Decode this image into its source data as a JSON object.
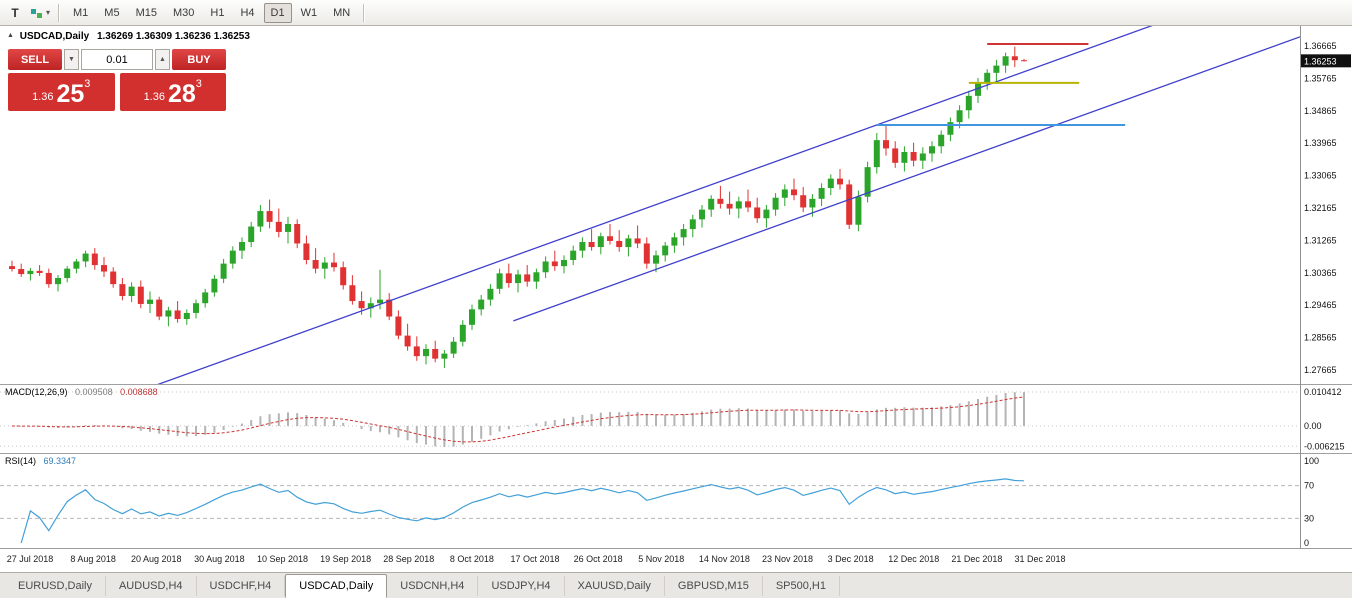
{
  "toolbar": {
    "text_tool": "T",
    "objects_dropdown_caret": "▾",
    "timeframes": [
      "M1",
      "M5",
      "M15",
      "M30",
      "H1",
      "H4",
      "D1",
      "W1",
      "MN"
    ],
    "active_timeframe": "D1"
  },
  "chart_header": {
    "marker": "▲",
    "symbol_period": "USDCAD,Daily",
    "ohlc": "1.36269 1.36309 1.36236 1.36253"
  },
  "trade_panel": {
    "sell_label": "SELL",
    "buy_label": "BUY",
    "volume": "0.01",
    "volume_down_glyph": "▼",
    "volume_up_glyph": "▲",
    "bid": {
      "big_figure": "1.36",
      "pips": "25",
      "pipette": "3"
    },
    "ask": {
      "big_figure": "1.36",
      "pips": "28",
      "pipette": "3"
    }
  },
  "price_scale": {
    "labels": [
      "1.36665",
      "1.35765",
      "1.34865",
      "1.33965",
      "1.33065",
      "1.32165",
      "1.31265",
      "1.30365",
      "1.29465",
      "1.28565",
      "1.27665"
    ],
    "current_price": "1.36253"
  },
  "macd_panel": {
    "name": "MACD(12,26,9)",
    "value_main": "0.009508",
    "value_signal": "0.008688",
    "scale": [
      "0.010412",
      "0.00",
      "-0.006215"
    ]
  },
  "rsi_panel": {
    "name": "RSI(14)",
    "value": "69.3347",
    "scale": [
      "100",
      "70",
      "30",
      "0"
    ]
  },
  "time_axis": [
    "27 Jul 2018",
    "8 Aug 2018",
    "20 Aug 2018",
    "30 Aug 2018",
    "10 Sep 2018",
    "19 Sep 2018",
    "28 Sep 2018",
    "8 Oct 2018",
    "17 Oct 2018",
    "26 Oct 2018",
    "5 Nov 2018",
    "14 Nov 2018",
    "23 Nov 2018",
    "3 Dec 2018",
    "12 Dec 2018",
    "21 Dec 2018",
    "31 Dec 2018"
  ],
  "tabs": {
    "items": [
      {
        "label": "EURUSD,Daily",
        "active": false
      },
      {
        "label": "AUDUSD,H4",
        "active": false
      },
      {
        "label": "USDCHF,H4",
        "active": false
      },
      {
        "label": "USDCAD,Daily",
        "active": true
      },
      {
        "label": "USDCNH,H4",
        "active": false
      },
      {
        "label": "USDJPY,H4",
        "active": false
      },
      {
        "label": "XAUUSD,Daily",
        "active": false
      },
      {
        "label": "GBPUSD,M15",
        "active": false
      },
      {
        "label": "SP500,H1",
        "active": false
      }
    ]
  },
  "colors": {
    "bull": "#2aa52a",
    "bear": "#e03232",
    "trendline": "#4040cc",
    "hline_red": "#d03333",
    "hline_yellow": "#b5b500",
    "hline_blue": "#4196e0",
    "macd_histogram": "#b4b4b4",
    "macd_signal": "#d03333",
    "rsi_line": "#42a0d8",
    "level_line": "#b8b8b8",
    "price_tag_bg": "#101010",
    "trade_red": "#d22f2f"
  },
  "chart_data": {
    "type": "candlestick",
    "symbol": "USDCAD",
    "period": "Daily",
    "visible_range": {
      "start": "27 Jul 2018",
      "end": "31 Dec 2018"
    },
    "y_axis": {
      "max": 1.36665,
      "min": 1.27665,
      "step": 0.009
    },
    "candles": [
      [
        1.3055,
        1.307,
        1.304,
        1.3047
      ],
      [
        1.3047,
        1.3062,
        1.3025,
        1.3033
      ],
      [
        1.3033,
        1.305,
        1.3015,
        1.3042
      ],
      [
        1.3042,
        1.3058,
        1.3028,
        1.3036
      ],
      [
        1.3036,
        1.3048,
        1.2995,
        1.3005
      ],
      [
        1.3005,
        1.303,
        1.2985,
        1.3022
      ],
      [
        1.3022,
        1.3055,
        1.301,
        1.3048
      ],
      [
        1.3048,
        1.3075,
        1.3035,
        1.3068
      ],
      [
        1.3068,
        1.3098,
        1.3052,
        1.309
      ],
      [
        1.309,
        1.3105,
        1.3045,
        1.3058
      ],
      [
        1.3058,
        1.308,
        1.3025,
        1.304
      ],
      [
        1.304,
        1.3052,
        1.2995,
        1.3005
      ],
      [
        1.3005,
        1.3022,
        1.296,
        1.2972
      ],
      [
        1.2972,
        1.301,
        1.2955,
        1.2998
      ],
      [
        1.2998,
        1.3015,
        1.2938,
        1.295
      ],
      [
        1.295,
        1.2985,
        1.2925,
        1.2962
      ],
      [
        1.2962,
        1.297,
        1.2905,
        1.2915
      ],
      [
        1.2915,
        1.2942,
        1.2888,
        1.2932
      ],
      [
        1.2932,
        1.2958,
        1.2898,
        1.2908
      ],
      [
        1.2908,
        1.2935,
        1.2892,
        1.2925
      ],
      [
        1.2925,
        1.2962,
        1.291,
        1.2952
      ],
      [
        1.2952,
        1.2992,
        1.294,
        1.2982
      ],
      [
        1.2982,
        1.303,
        1.297,
        1.302
      ],
      [
        1.302,
        1.3075,
        1.3008,
        1.3062
      ],
      [
        1.3062,
        1.311,
        1.3048,
        1.3098
      ],
      [
        1.3098,
        1.3135,
        1.3075,
        1.3122
      ],
      [
        1.3122,
        1.3178,
        1.3108,
        1.3165
      ],
      [
        1.3165,
        1.3225,
        1.315,
        1.3208
      ],
      [
        1.3208,
        1.324,
        1.316,
        1.3178
      ],
      [
        1.3178,
        1.3215,
        1.3135,
        1.315
      ],
      [
        1.315,
        1.3192,
        1.3118,
        1.3172
      ],
      [
        1.3172,
        1.3185,
        1.3105,
        1.3118
      ],
      [
        1.3118,
        1.314,
        1.306,
        1.3072
      ],
      [
        1.3072,
        1.3105,
        1.3035,
        1.3048
      ],
      [
        1.3048,
        1.308,
        1.302,
        1.3065
      ],
      [
        1.3065,
        1.3092,
        1.304,
        1.3052
      ],
      [
        1.3052,
        1.3068,
        1.299,
        1.3002
      ],
      [
        1.3002,
        1.303,
        1.2948,
        1.2958
      ],
      [
        1.2958,
        1.2985,
        1.292,
        1.2938
      ],
      [
        1.2938,
        1.2968,
        1.2912,
        1.2952
      ],
      [
        1.2952,
        1.3045,
        1.2935,
        1.2962
      ],
      [
        1.2962,
        1.298,
        1.2905,
        1.2915
      ],
      [
        1.2915,
        1.2932,
        1.2852,
        1.2862
      ],
      [
        1.2862,
        1.2895,
        1.282,
        1.2832
      ],
      [
        1.2832,
        1.286,
        1.2792,
        1.2805
      ],
      [
        1.2805,
        1.2838,
        1.2782,
        1.2825
      ],
      [
        1.2825,
        1.2848,
        1.2788,
        1.2798
      ],
      [
        1.2798,
        1.2822,
        1.2772,
        1.2812
      ],
      [
        1.2812,
        1.2858,
        1.28,
        1.2845
      ],
      [
        1.2845,
        1.2905,
        1.2832,
        1.2892
      ],
      [
        1.2892,
        1.2948,
        1.2878,
        1.2935
      ],
      [
        1.2935,
        1.2975,
        1.2918,
        1.2962
      ],
      [
        1.2962,
        1.3005,
        1.2945,
        1.2992
      ],
      [
        1.2992,
        1.3048,
        1.2978,
        1.3035
      ],
      [
        1.3035,
        1.3062,
        1.2995,
        1.3008
      ],
      [
        1.3008,
        1.3045,
        1.2982,
        1.3032
      ],
      [
        1.3032,
        1.3058,
        1.2998,
        1.3012
      ],
      [
        1.3012,
        1.3048,
        1.2992,
        1.3038
      ],
      [
        1.3038,
        1.3082,
        1.3022,
        1.3068
      ],
      [
        1.3068,
        1.3098,
        1.3042,
        1.3055
      ],
      [
        1.3055,
        1.3085,
        1.3035,
        1.3072
      ],
      [
        1.3072,
        1.3112,
        1.3058,
        1.3098
      ],
      [
        1.3098,
        1.3135,
        1.3078,
        1.3122
      ],
      [
        1.3122,
        1.3158,
        1.3098,
        1.3108
      ],
      [
        1.3108,
        1.3148,
        1.3088,
        1.3138
      ],
      [
        1.3138,
        1.3172,
        1.3115,
        1.3125
      ],
      [
        1.3125,
        1.3155,
        1.3095,
        1.3108
      ],
      [
        1.3108,
        1.3142,
        1.3082,
        1.3132
      ],
      [
        1.3132,
        1.3168,
        1.3105,
        1.3118
      ],
      [
        1.3118,
        1.3135,
        1.3048,
        1.3062
      ],
      [
        1.3062,
        1.3098,
        1.3038,
        1.3085
      ],
      [
        1.3085,
        1.3122,
        1.3068,
        1.3112
      ],
      [
        1.3112,
        1.3148,
        1.3092,
        1.3135
      ],
      [
        1.3135,
        1.3172,
        1.3112,
        1.3158
      ],
      [
        1.3158,
        1.3198,
        1.3135,
        1.3185
      ],
      [
        1.3185,
        1.3225,
        1.3162,
        1.3212
      ],
      [
        1.3212,
        1.3252,
        1.3192,
        1.3242
      ],
      [
        1.3242,
        1.3278,
        1.3215,
        1.3228
      ],
      [
        1.3228,
        1.3262,
        1.3198,
        1.3215
      ],
      [
        1.3215,
        1.3248,
        1.3188,
        1.3235
      ],
      [
        1.3235,
        1.3268,
        1.3205,
        1.3218
      ],
      [
        1.3218,
        1.3245,
        1.3175,
        1.3188
      ],
      [
        1.3188,
        1.3225,
        1.3162,
        1.3212
      ],
      [
        1.3212,
        1.3258,
        1.3195,
        1.3245
      ],
      [
        1.3245,
        1.3282,
        1.3222,
        1.3268
      ],
      [
        1.3268,
        1.3298,
        1.3238,
        1.3252
      ],
      [
        1.3252,
        1.3275,
        1.3205,
        1.3218
      ],
      [
        1.3218,
        1.3255,
        1.3192,
        1.3242
      ],
      [
        1.3242,
        1.3285,
        1.3222,
        1.3272
      ],
      [
        1.3272,
        1.331,
        1.3252,
        1.3298
      ],
      [
        1.3298,
        1.3325,
        1.3268,
        1.3282
      ],
      [
        1.3282,
        1.3295,
        1.3158,
        1.317
      ],
      [
        1.317,
        1.3265,
        1.3152,
        1.3248
      ],
      [
        1.3248,
        1.3345,
        1.3232,
        1.333
      ],
      [
        1.333,
        1.3425,
        1.3312,
        1.3405
      ],
      [
        1.3405,
        1.3445,
        1.3362,
        1.3382
      ],
      [
        1.3382,
        1.3402,
        1.3328,
        1.3342
      ],
      [
        1.3342,
        1.3388,
        1.3318,
        1.3372
      ],
      [
        1.3372,
        1.3398,
        1.3332,
        1.3348
      ],
      [
        1.3348,
        1.3385,
        1.3325,
        1.3368
      ],
      [
        1.3368,
        1.3402,
        1.3345,
        1.3388
      ],
      [
        1.3388,
        1.3432,
        1.3368,
        1.342
      ],
      [
        1.342,
        1.3468,
        1.3402,
        1.3455
      ],
      [
        1.3455,
        1.3502,
        1.3438,
        1.3488
      ],
      [
        1.3488,
        1.3542,
        1.3465,
        1.3528
      ],
      [
        1.3528,
        1.3578,
        1.3508,
        1.3565
      ],
      [
        1.3565,
        1.3602,
        1.3545,
        1.3592
      ],
      [
        1.3592,
        1.3628,
        1.3568,
        1.3612
      ],
      [
        1.3612,
        1.3648,
        1.3592,
        1.3638
      ],
      [
        1.3638,
        1.3665,
        1.3608,
        1.3627
      ],
      [
        1.36269,
        1.36309,
        1.36236,
        1.36253
      ]
    ],
    "overlays": {
      "channel_lines": [
        {
          "from": {
            "bar": 15.5,
            "price": 1.2723
          },
          "to": {
            "bar": 124,
            "price": 1.3724
          }
        },
        {
          "from": {
            "bar": 54.5,
            "price": 1.2903
          },
          "to": {
            "bar": 140,
            "price": 1.3692
          }
        }
      ],
      "horizontal_segments": [
        {
          "price": 1.3672,
          "from_bar": 106,
          "to_bar": 117,
          "color_key": "hline_red"
        },
        {
          "price": 1.3564,
          "from_bar": 104,
          "to_bar": 116,
          "color_key": "hline_yellow"
        },
        {
          "price": 1.3447,
          "from_bar": 94,
          "to_bar": 121,
          "color_key": "hline_blue"
        }
      ]
    },
    "indicators": [
      {
        "type": "MACD",
        "params": [
          12,
          26,
          9
        ],
        "last_main": 0.009508,
        "last_signal": 0.008688,
        "scale_max": 0.010412,
        "scale_min": -0.006215
      },
      {
        "type": "RSI",
        "params": [
          14
        ],
        "last_value": 69.3347,
        "levels": [
          70,
          30
        ],
        "scale": [
          0,
          100
        ]
      }
    ]
  }
}
